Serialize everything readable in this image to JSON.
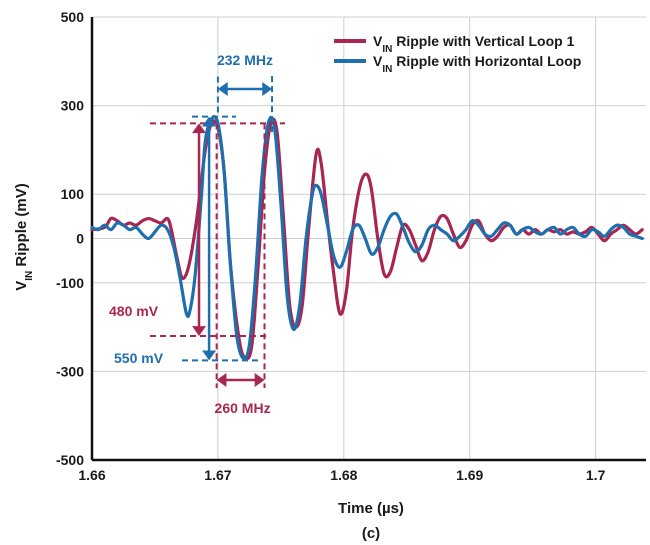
{
  "chart_data": {
    "type": "line",
    "title": "",
    "caption": "(c)",
    "xlabel": "Time (µs)",
    "ylabel": {
      "prefix": "V",
      "subscript": "IN",
      "suffix": " Ripple (mV)"
    },
    "xlim": [
      1.66,
      1.704
    ],
    "ylim": [
      -500,
      500
    ],
    "x_ticks": [
      {
        "value": 1.66,
        "label": "1.66"
      },
      {
        "value": 1.67,
        "label": "1.67"
      },
      {
        "value": 1.68,
        "label": "1.68"
      },
      {
        "value": 1.69,
        "label": "1.69"
      },
      {
        "value": 1.7,
        "label": "1.7"
      }
    ],
    "y_ticks": [
      {
        "value": 500,
        "label": "500"
      },
      {
        "value": 300,
        "label": "300"
      },
      {
        "value": 100,
        "label": "100"
      },
      {
        "value": 0,
        "label": "0"
      },
      {
        "value": -100,
        "label": "-100"
      },
      {
        "value": -300,
        "label": "-300"
      },
      {
        "value": -500,
        "label": "-500"
      }
    ],
    "grid": true,
    "legend_position": "top-right",
    "series": [
      {
        "name": "V_IN Ripple with Vertical Loop 1",
        "legend": {
          "prefix": "V",
          "subscript": "IN",
          "suffix": " Ripple with Vertical Loop 1"
        },
        "color": "#a8264f",
        "points": [
          [
            1.66,
            20
          ],
          [
            1.661,
            25
          ],
          [
            1.6615,
            45
          ],
          [
            1.662,
            40
          ],
          [
            1.6625,
            30
          ],
          [
            1.663,
            35
          ],
          [
            1.6635,
            30
          ],
          [
            1.664,
            40
          ],
          [
            1.6645,
            45
          ],
          [
            1.665,
            40
          ],
          [
            1.6655,
            35
          ],
          [
            1.666,
            45
          ],
          [
            1.6663,
            20
          ],
          [
            1.6668,
            -50
          ],
          [
            1.6672,
            -90
          ],
          [
            1.6677,
            -60
          ],
          [
            1.6683,
            40
          ],
          [
            1.669,
            200
          ],
          [
            1.6695,
            260
          ],
          [
            1.67,
            250
          ],
          [
            1.6705,
            150
          ],
          [
            1.671,
            -60
          ],
          [
            1.6717,
            -230
          ],
          [
            1.6722,
            -270
          ],
          [
            1.6727,
            -240
          ],
          [
            1.6732,
            -60
          ],
          [
            1.6737,
            150
          ],
          [
            1.6742,
            260
          ],
          [
            1.6747,
            240
          ],
          [
            1.6752,
            50
          ],
          [
            1.6757,
            -150
          ],
          [
            1.6762,
            -200
          ],
          [
            1.6767,
            -150
          ],
          [
            1.6772,
            20
          ],
          [
            1.6778,
            190
          ],
          [
            1.6782,
            170
          ],
          [
            1.6787,
            40
          ],
          [
            1.6792,
            -80
          ],
          [
            1.6797,
            -170
          ],
          [
            1.6802,
            -120
          ],
          [
            1.6807,
            20
          ],
          [
            1.6813,
            120
          ],
          [
            1.6818,
            145
          ],
          [
            1.6822,
            110
          ],
          [
            1.6827,
            0
          ],
          [
            1.6832,
            -80
          ],
          [
            1.6837,
            -75
          ],
          [
            1.6842,
            -20
          ],
          [
            1.6847,
            30
          ],
          [
            1.6852,
            20
          ],
          [
            1.6857,
            -15
          ],
          [
            1.6862,
            -50
          ],
          [
            1.6867,
            -30
          ],
          [
            1.6872,
            20
          ],
          [
            1.6877,
            50
          ],
          [
            1.6882,
            45
          ],
          [
            1.6887,
            10
          ],
          [
            1.6892,
            -20
          ],
          [
            1.6897,
            -5
          ],
          [
            1.6902,
            30
          ],
          [
            1.6907,
            40
          ],
          [
            1.6912,
            10
          ],
          [
            1.6917,
            -5
          ],
          [
            1.6922,
            5
          ],
          [
            1.6927,
            25
          ],
          [
            1.6932,
            30
          ],
          [
            1.6937,
            10
          ],
          [
            1.6942,
            20
          ],
          [
            1.6947,
            10
          ],
          [
            1.6952,
            20
          ],
          [
            1.6957,
            10
          ],
          [
            1.6962,
            20
          ],
          [
            1.6967,
            15
          ],
          [
            1.6972,
            20
          ],
          [
            1.6977,
            10
          ],
          [
            1.6982,
            15
          ],
          [
            1.6987,
            10
          ],
          [
            1.6992,
            15
          ],
          [
            1.6997,
            25
          ],
          [
            1.7002,
            10
          ],
          [
            1.7007,
            -5
          ],
          [
            1.7012,
            10
          ],
          [
            1.7017,
            20
          ],
          [
            1.7022,
            30
          ],
          [
            1.7027,
            20
          ],
          [
            1.7032,
            10
          ],
          [
            1.7037,
            20
          ]
        ]
      },
      {
        "name": "V_IN Ripple with Horizontal Loop",
        "legend": {
          "prefix": "V",
          "subscript": "IN",
          "suffix": " Ripple with Horizontal Loop"
        },
        "color": "#1f6faf",
        "points": [
          [
            1.66,
            25
          ],
          [
            1.6605,
            20
          ],
          [
            1.661,
            30
          ],
          [
            1.6615,
            20
          ],
          [
            1.662,
            35
          ],
          [
            1.6625,
            30
          ],
          [
            1.663,
            20
          ],
          [
            1.6635,
            25
          ],
          [
            1.664,
            10
          ],
          [
            1.6645,
            0
          ],
          [
            1.665,
            15
          ],
          [
            1.6655,
            30
          ],
          [
            1.666,
            20
          ],
          [
            1.6665,
            -20
          ],
          [
            1.667,
            -90
          ],
          [
            1.6675,
            -170
          ],
          [
            1.6678,
            -160
          ],
          [
            1.6682,
            -80
          ],
          [
            1.6687,
            100
          ],
          [
            1.669,
            220
          ],
          [
            1.6695,
            270
          ],
          [
            1.67,
            260
          ],
          [
            1.6705,
            150
          ],
          [
            1.671,
            -60
          ],
          [
            1.6715,
            -220
          ],
          [
            1.672,
            -270
          ],
          [
            1.6725,
            -240
          ],
          [
            1.673,
            -80
          ],
          [
            1.6735,
            140
          ],
          [
            1.674,
            260
          ],
          [
            1.6745,
            250
          ],
          [
            1.675,
            80
          ],
          [
            1.6755,
            -130
          ],
          [
            1.676,
            -205
          ],
          [
            1.6765,
            -150
          ],
          [
            1.677,
            0
          ],
          [
            1.6775,
            100
          ],
          [
            1.6778,
            120
          ],
          [
            1.6782,
            100
          ],
          [
            1.6787,
            30
          ],
          [
            1.6792,
            -40
          ],
          [
            1.6797,
            -65
          ],
          [
            1.6802,
            -30
          ],
          [
            1.6807,
            20
          ],
          [
            1.6812,
            30
          ],
          [
            1.6817,
            0
          ],
          [
            1.6822,
            -35
          ],
          [
            1.6827,
            -20
          ],
          [
            1.6832,
            20
          ],
          [
            1.6837,
            50
          ],
          [
            1.6842,
            55
          ],
          [
            1.6847,
            25
          ],
          [
            1.6852,
            -10
          ],
          [
            1.6857,
            -30
          ],
          [
            1.6862,
            -15
          ],
          [
            1.6867,
            20
          ],
          [
            1.6872,
            30
          ],
          [
            1.6877,
            20
          ],
          [
            1.6882,
            10
          ],
          [
            1.6887,
            -5
          ],
          [
            1.6892,
            5
          ],
          [
            1.6897,
            20
          ],
          [
            1.6902,
            40
          ],
          [
            1.6907,
            30
          ],
          [
            1.6912,
            10
          ],
          [
            1.6917,
            5
          ],
          [
            1.6922,
            20
          ],
          [
            1.6927,
            35
          ],
          [
            1.6932,
            30
          ],
          [
            1.6937,
            10
          ],
          [
            1.6942,
            20
          ],
          [
            1.6947,
            25
          ],
          [
            1.6952,
            15
          ],
          [
            1.6957,
            10
          ],
          [
            1.6962,
            20
          ],
          [
            1.6967,
            25
          ],
          [
            1.6972,
            10
          ],
          [
            1.6977,
            20
          ],
          [
            1.6982,
            25
          ],
          [
            1.6987,
            10
          ],
          [
            1.6992,
            5
          ],
          [
            1.6997,
            20
          ],
          [
            1.7002,
            15
          ],
          [
            1.7007,
            5
          ],
          [
            1.7012,
            20
          ],
          [
            1.7017,
            30
          ],
          [
            1.7022,
            25
          ],
          [
            1.7027,
            10
          ],
          [
            1.7032,
            5
          ],
          [
            1.7037,
            0
          ]
        ]
      }
    ],
    "annotations": [
      {
        "text": "232 MHz",
        "color": "#1f6faf",
        "x_start": 1.67,
        "x_end": 1.6743,
        "ref_y_top": 280,
        "ref_y_bottom": 240
      },
      {
        "text": "260 MHz",
        "color": "#a8264f",
        "x_start": 1.6699,
        "x_end": 1.6737,
        "ref_y_top": 260,
        "ref_y_bottom": -300
      },
      {
        "text": "480 mV",
        "color": "#a8264f",
        "x": 1.6685,
        "y_top": 260,
        "y_bottom": -220
      },
      {
        "text": "550 mV",
        "color": "#1f6faf",
        "x": 1.6693,
        "y_top": 275,
        "y_bottom": -275
      }
    ]
  }
}
